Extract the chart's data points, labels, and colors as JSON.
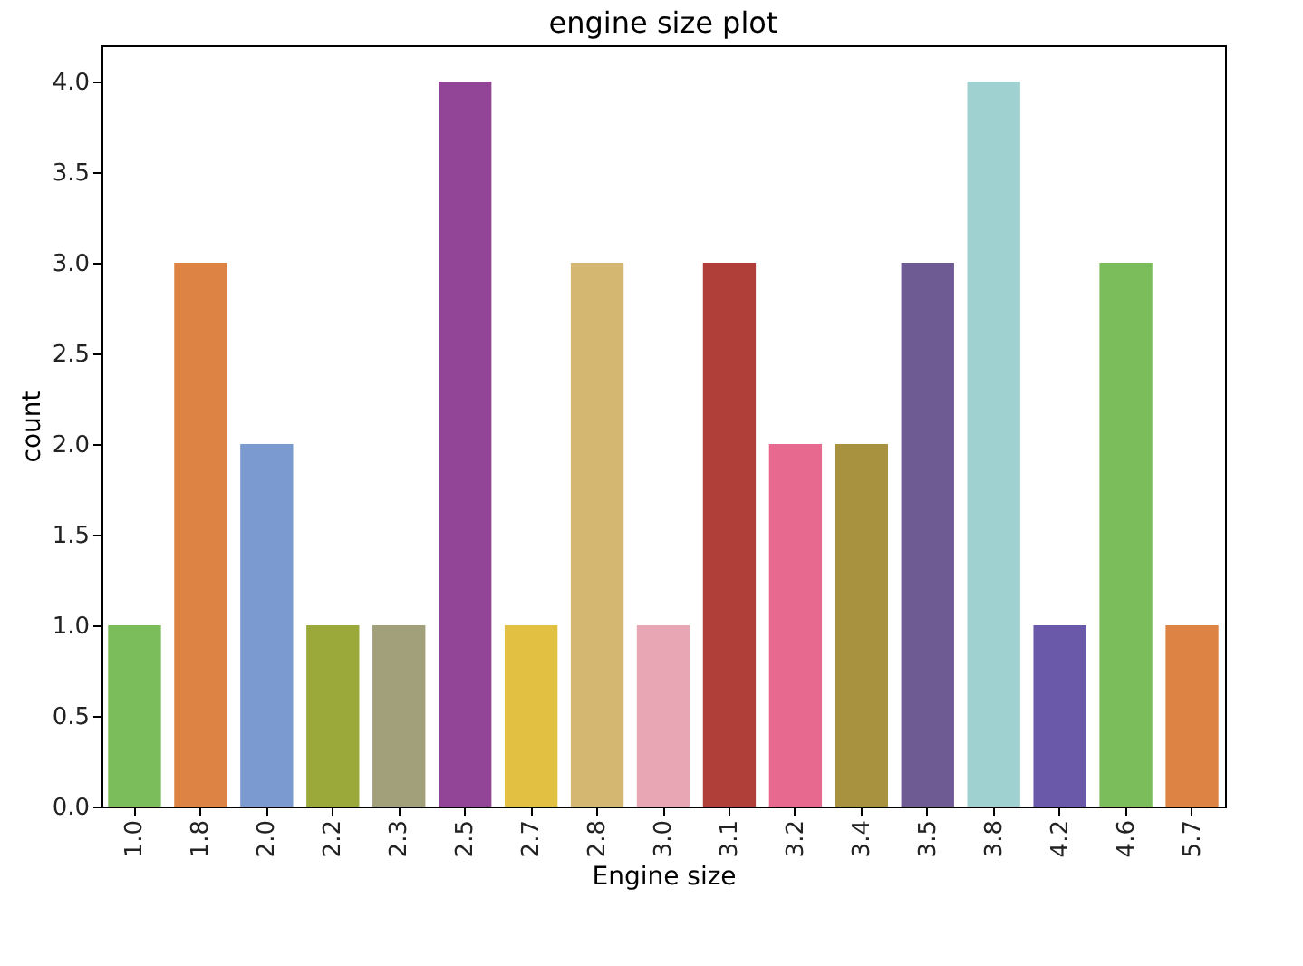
{
  "chart_data": {
    "type": "bar",
    "title": "engine size plot",
    "xlabel": "Engine size",
    "ylabel": "count",
    "categories": [
      "1.0",
      "1.8",
      "2.0",
      "2.2",
      "2.3",
      "2.5",
      "2.7",
      "2.8",
      "3.0",
      "3.1",
      "3.2",
      "3.4",
      "3.5",
      "3.8",
      "4.2",
      "4.6",
      "5.7"
    ],
    "values": [
      1,
      3,
      2,
      1,
      1,
      4,
      1,
      3,
      1,
      3,
      2,
      2,
      3,
      4,
      1,
      3,
      1
    ],
    "colors": [
      "#7bbd5a",
      "#dd8444",
      "#7b9ad0",
      "#9aa93a",
      "#a2a07a",
      "#924596",
      "#e2c041",
      "#d4b872",
      "#e8a6b4",
      "#b03f3a",
      "#e8698f",
      "#a8913f",
      "#6f5b94",
      "#9fd1d0",
      "#6959a8",
      "#7bbd5a",
      "#dd8444"
    ],
    "ylim": [
      0,
      4.2
    ],
    "yticks": [
      {
        "value": 0,
        "label": "0.0"
      },
      {
        "value": 0.5,
        "label": "0.5"
      },
      {
        "value": 1,
        "label": "1.0"
      },
      {
        "value": 1.5,
        "label": "1.5"
      },
      {
        "value": 2,
        "label": "2.0"
      },
      {
        "value": 2.5,
        "label": "2.5"
      },
      {
        "value": 3,
        "label": "3.0"
      },
      {
        "value": 3.5,
        "label": "3.5"
      },
      {
        "value": 4,
        "label": "4.0"
      }
    ],
    "grid": false
  }
}
